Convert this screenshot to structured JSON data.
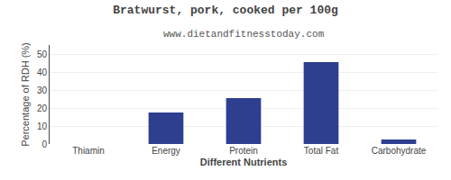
{
  "chart_data": {
    "type": "bar",
    "title": "Bratwurst, pork, cooked per 100g",
    "subtitle": "www.dietandfitnesstoday.com",
    "xlabel": "Different Nutrients",
    "ylabel": "Percentage of RDH (%)",
    "categories": [
      "Thiamin",
      "Energy",
      "Protein",
      "Total Fat",
      "Carbohydrate"
    ],
    "values": [
      0,
      17.5,
      25.5,
      45.5,
      2.5
    ],
    "color": "#2e3f8f",
    "ylim": [
      0,
      55
    ],
    "yticks": [
      0,
      10,
      20,
      30,
      40,
      50
    ],
    "grid": true
  }
}
